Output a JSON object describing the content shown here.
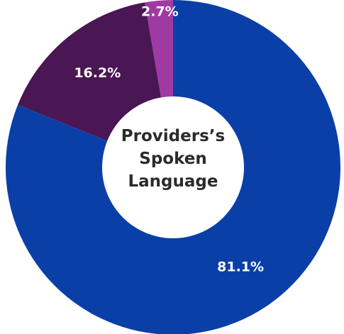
{
  "chart_data": {
    "type": "donut",
    "title": "Providers’s Spoken Language",
    "categories": [
      null,
      null,
      null
    ],
    "values": [
      81.1,
      16.2,
      2.7
    ],
    "value_labels": [
      "81.1%",
      "16.2%",
      "2.7%"
    ],
    "colors": [
      "#0b3fa8",
      "#4a1653",
      "#a03aa3"
    ]
  }
}
